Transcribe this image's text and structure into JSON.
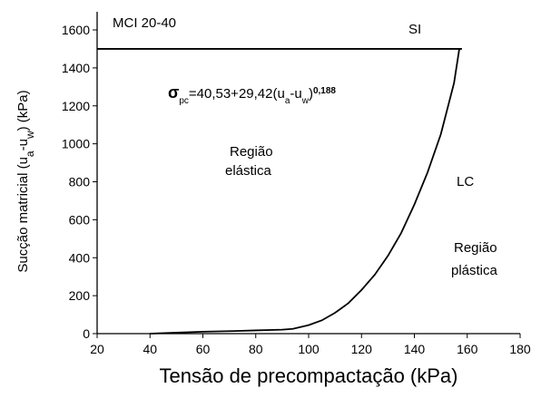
{
  "chart_data": {
    "type": "line",
    "x_label": "Tensão de precompactação (kPa)",
    "y_label_parts": [
      "Sucção matricial (u",
      "a",
      "-u",
      "w",
      ") (kPa)"
    ],
    "annotations": [
      "MCI  20-40",
      "Região",
      "elástica",
      "Região",
      "plástica"
    ],
    "equation_parts": [
      "σ",
      "pc",
      "=40,53+29,42(u",
      "a",
      "-u",
      "w",
      ")",
      "0,188"
    ],
    "series": [
      {
        "name": "SI",
        "color": "#000000",
        "x": [
          20,
          158
        ],
        "values": [
          1500,
          1500
        ]
      },
      {
        "name": "LC",
        "color": "#000000",
        "x": [
          40,
          50,
          60,
          70,
          80,
          90,
          94,
          100,
          105,
          110,
          115,
          120,
          125,
          130,
          135,
          140,
          145,
          150,
          155,
          157
        ],
        "values": [
          0,
          5,
          10,
          13,
          17,
          21,
          25,
          45,
          70,
          110,
          160,
          230,
          310,
          410,
          530,
          680,
          850,
          1050,
          1320,
          1500
        ]
      }
    ],
    "xlim": [
      20,
      180
    ],
    "xticks": [
      20,
      40,
      60,
      80,
      100,
      120,
      140,
      160,
      180
    ],
    "ylim": [
      0,
      1600
    ],
    "yticks": [
      0,
      200,
      400,
      600,
      800,
      1000,
      1200,
      1400,
      1600
    ],
    "grid": false
  }
}
